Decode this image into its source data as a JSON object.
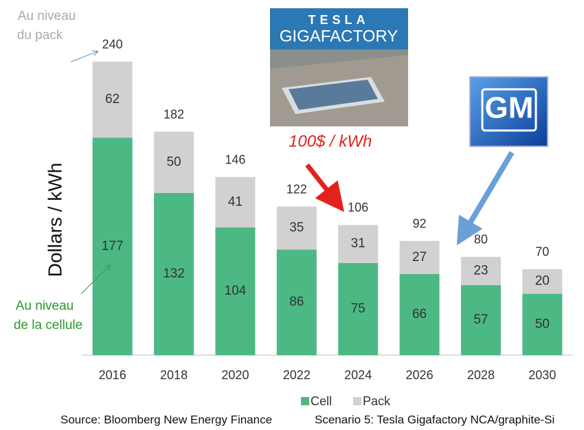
{
  "chart_data": {
    "type": "stacked_bar",
    "y_label": "Dollars / kWh",
    "categories": [
      "2016",
      "2018",
      "2020",
      "2022",
      "2024",
      "2026",
      "2028",
      "2030"
    ],
    "series": [
      {
        "name": "Cell",
        "color": "#4cb884",
        "values": [
          177,
          132,
          104,
          86,
          75,
          66,
          57,
          50
        ]
      },
      {
        "name": "Pack",
        "color": "#d2d1d2",
        "values": [
          62,
          50,
          41,
          35,
          31,
          27,
          23,
          20
        ]
      }
    ],
    "totals": [
      240,
      182,
      146,
      122,
      106,
      92,
      80,
      70
    ],
    "ylim": [
      0,
      250
    ],
    "legend": "bottom",
    "pack_note": [
      "Au niveau",
      "du pack"
    ],
    "cell_note": [
      "Au niveau",
      "de la cellule"
    ],
    "tesla_note": "100$ / kWh",
    "tesla_logo": [
      "TESLA",
      "GIGAFACTORY"
    ],
    "gm_logo": "GM",
    "source": "Source: Bloomberg New Energy Finance",
    "scenario": "Scenario 5: Tesla Gigafactory NCA/graphite-Si"
  }
}
